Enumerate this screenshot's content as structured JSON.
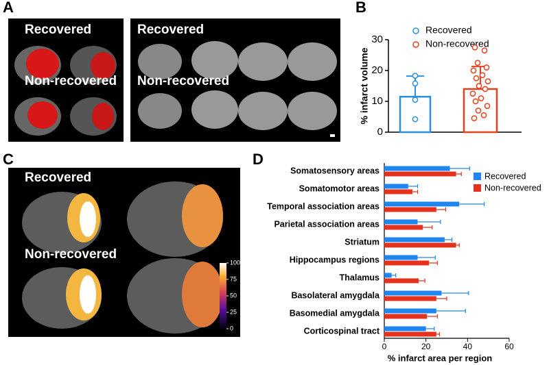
{
  "figure": {
    "panel_labels": [
      "A",
      "B",
      "C",
      "D"
    ],
    "panel_a": {
      "left": [
        "Recovered",
        "Non-recovered"
      ],
      "right": [
        "Recovered",
        "Non-recovered"
      ]
    },
    "panel_c": {
      "labels": [
        "Recovered",
        "Non-recovered"
      ],
      "colorbar": {
        "lim": [
          0,
          100
        ],
        "ticks": [
          0,
          25,
          50,
          75,
          100
        ]
      }
    }
  },
  "chart_data": [
    {
      "type": "bar",
      "ylabel": "% infarct volume",
      "ylim": [
        0,
        30
      ],
      "yticks": [
        0,
        10,
        20,
        30
      ],
      "legend": "top-left",
      "series": [
        {
          "name": "Recovered",
          "color": "#2b8fe0",
          "values": [
            11.5
          ],
          "errors": [
            6.7
          ],
          "points": [
            18.3,
            15.8,
            10.5,
            4.2
          ]
        },
        {
          "name": "Non-recovered",
          "color": "#e5401c",
          "values": [
            14
          ],
          "errors": [
            7.3
          ],
          "points": [
            27.5,
            26.5,
            22.5,
            21,
            20,
            18.5,
            17.5,
            16.5,
            15,
            14,
            12.5,
            11,
            10,
            8.5,
            7,
            5.5,
            4.5
          ]
        }
      ]
    },
    {
      "type": "barh",
      "xlabel": "% infarct area per region",
      "xlim": [
        0,
        60
      ],
      "xticks": [
        0,
        20,
        40,
        60
      ],
      "legend": "top-right",
      "categories": [
        "Somatosensory areas",
        "Somatomotor areas",
        "Temporal association areas",
        "Parietal association areas",
        "Striatum",
        "Hippocampus regions",
        "Thalamus",
        "Basolateral amygdala",
        "Basomedial amygdala",
        "Corticospinal tract"
      ],
      "series": [
        {
          "name": "Recovered",
          "color": "#1f86f0",
          "values": [
            31.5,
            11.5,
            36,
            16,
            29,
            16,
            3.5,
            27.5,
            25,
            20
          ],
          "errors": [
            9.5,
            4.5,
            12,
            11,
            3.5,
            8.5,
            2,
            13,
            14,
            4
          ]
        },
        {
          "name": "Non-recovered",
          "color": "#e5321c",
          "values": [
            34.5,
            13.5,
            25,
            18.5,
            34.5,
            21.5,
            16.5,
            25,
            20.5,
            25
          ],
          "errors": [
            2.5,
            2.5,
            4.5,
            4.5,
            1.5,
            4,
            3,
            5,
            5,
            1.5
          ]
        }
      ]
    }
  ]
}
